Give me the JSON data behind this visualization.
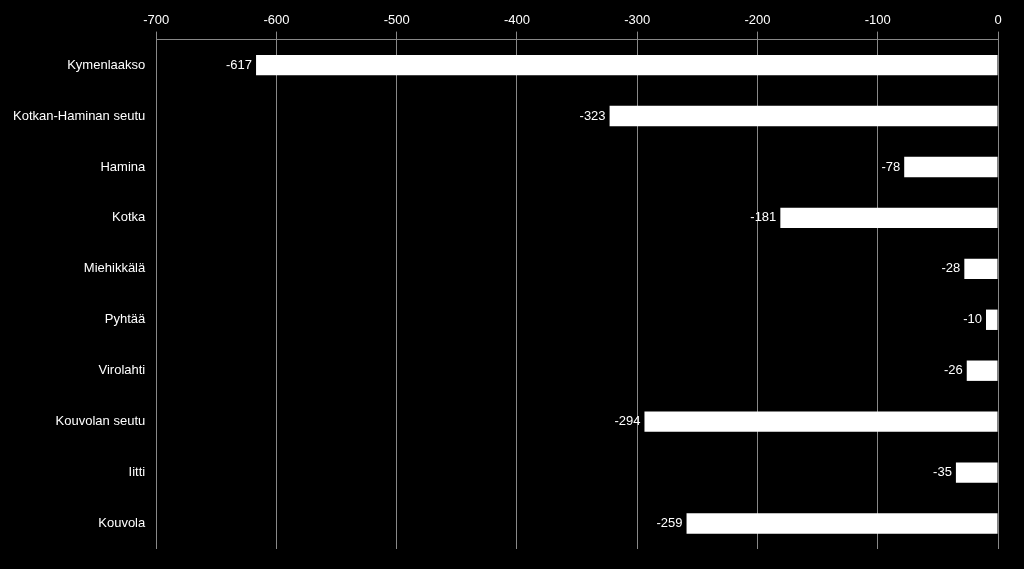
{
  "chart_data": {
    "type": "bar",
    "orientation": "horizontal",
    "categories": [
      "Kymenlaakso",
      "Kotkan-Haminan seutu",
      "Hamina",
      "Kotka",
      "Miehikkälä",
      "Pyhtää",
      "Virolahti",
      "Kouvolan seutu",
      "Iitti",
      "Kouvola"
    ],
    "values": [
      -617,
      -323,
      -78,
      -181,
      -28,
      -10,
      -26,
      -294,
      -35,
      -259
    ],
    "color": "#ffffff",
    "xlim": [
      -700,
      0
    ],
    "xticks": [
      -700,
      -600,
      -500,
      -400,
      -300,
      -200,
      -100,
      0
    ],
    "grid": "x",
    "legend": false,
    "data_labels": true
  }
}
